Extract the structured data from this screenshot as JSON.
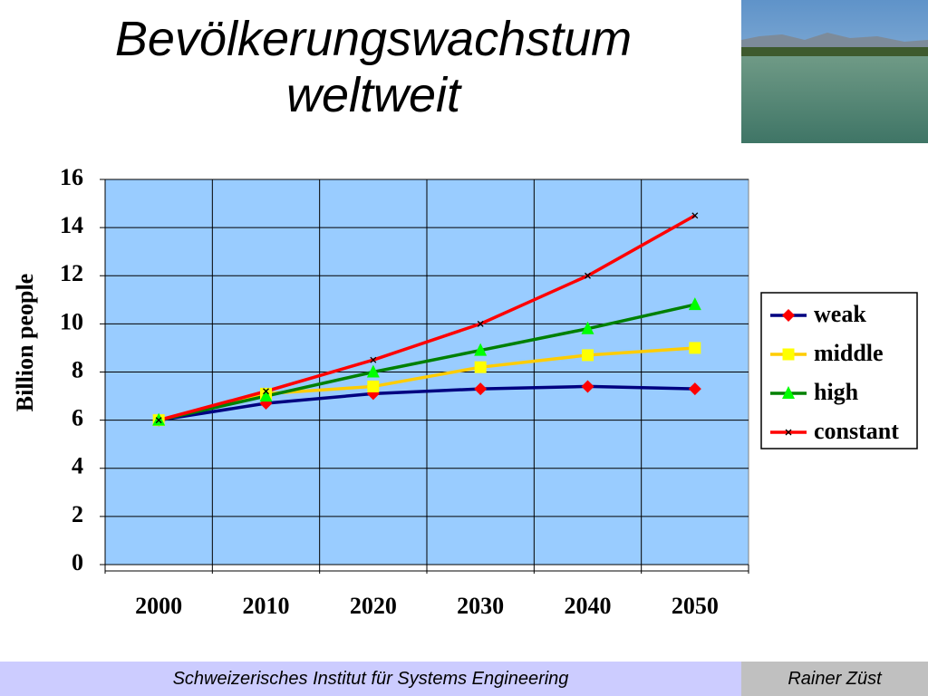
{
  "header": {
    "title": "Bevölkerungswachstum weltweit"
  },
  "chart_data": {
    "type": "line",
    "y_label": "Billion people",
    "categories": [
      "2000",
      "2010",
      "2020",
      "2030",
      "2040",
      "2050"
    ],
    "series": [
      {
        "name": "weak",
        "color": "#000080",
        "marker": "diamond",
        "marker_color": "#ff0000",
        "values": [
          6.0,
          6.7,
          7.1,
          7.3,
          7.4,
          7.3
        ]
      },
      {
        "name": "middle",
        "color": "#ffcc00",
        "marker": "square",
        "marker_color": "#ffff00",
        "values": [
          6.0,
          7.1,
          7.4,
          8.2,
          8.7,
          9.0
        ]
      },
      {
        "name": "high",
        "color": "#008000",
        "marker": "triangle",
        "marker_color": "#00ff00",
        "values": [
          6.0,
          7.0,
          8.0,
          8.9,
          9.8,
          10.8
        ]
      },
      {
        "name": "constant",
        "color": "#ff0000",
        "marker": "x",
        "marker_color": "#000000",
        "values": [
          6.0,
          7.2,
          8.5,
          10.0,
          12.0,
          14.5
        ]
      }
    ],
    "ylim": [
      0,
      16
    ],
    "yticks": [
      0,
      2,
      4,
      6,
      8,
      10,
      12,
      14,
      16
    ],
    "grid": true,
    "plot_background": "#99ccff",
    "legend": "right"
  },
  "footer": {
    "left": "Schweizerisches Institut für Systems Engineering",
    "right": "Rainer Züst"
  }
}
